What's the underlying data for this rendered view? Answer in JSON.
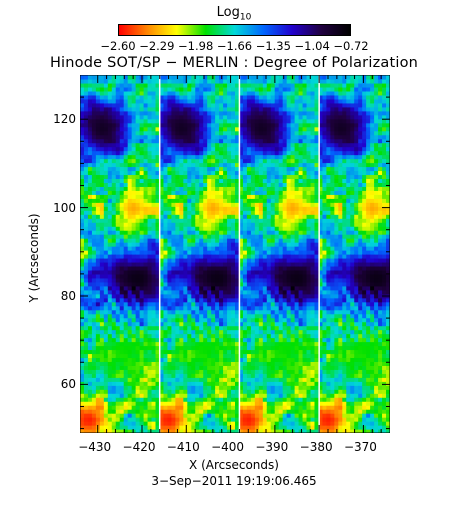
{
  "colorbar": {
    "title_main": "Log",
    "title_sub": "10",
    "ticks": [
      "−2.60",
      "−2.29",
      "−1.98",
      "−1.66",
      "−1.35",
      "−1.04",
      "−0.72"
    ],
    "colors": [
      "#ff0000",
      "#ff8800",
      "#ffff00",
      "#00e000",
      "#00d8d8",
      "#0066ff",
      "#2200cc",
      "#200040",
      "#000000"
    ]
  },
  "chart_data": {
    "type": "heatmap",
    "title": "Hinode SOT/SP − MERLIN : Degree of Polarization",
    "xlabel": "X (Arcseconds)",
    "ylabel": "Y (Arcseconds)",
    "xlim": [
      -434,
      -364
    ],
    "ylim": [
      49,
      130
    ],
    "x_ticks": [
      -430,
      -420,
      -410,
      -400,
      -390,
      -380,
      -370
    ],
    "y_ticks": [
      60,
      80,
      100,
      120
    ],
    "x_tick_labels": [
      "−430",
      "−420",
      "−410",
      "−400",
      "−390",
      "−380",
      "−370"
    ],
    "y_tick_labels": [
      "60",
      "80",
      "100",
      "120"
    ],
    "value_range": [
      -2.6,
      -0.72
    ],
    "value_scale": "log10",
    "strip_starts_x": [
      -434,
      -416,
      -398,
      -380
    ],
    "features": [
      {
        "x_offset": 5,
        "y": 118,
        "value": -0.85
      },
      {
        "x_offset": 13,
        "y": 84,
        "value": -0.8
      },
      {
        "x_offset": 2,
        "y": 52,
        "value": -2.55
      },
      {
        "x_offset": 12,
        "y": 100,
        "value": -2.3
      },
      {
        "x_offset": 10,
        "y": 68,
        "value": -1.9
      }
    ]
  },
  "date_stamp": "3−Sep−2011 19:19:06.465"
}
